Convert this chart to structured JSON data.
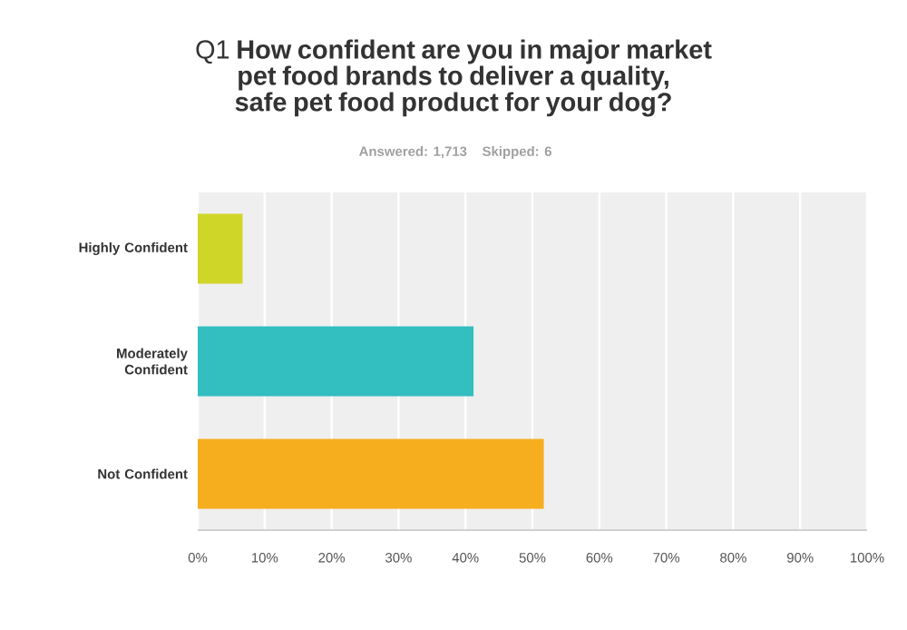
{
  "chart_data": {
    "type": "bar",
    "orientation": "horizontal",
    "title": "Q1 **How confident are you in major market pet food brands to deliver a quality, safe pet food product for your dog?**",
    "subtitle": "Answered: 1,713    Skipped: 6",
    "categories": [
      "Highly Confident",
      "Moderately Confident",
      "Not Confident"
    ],
    "values": [
      6.7,
      41.2,
      51.7
    ],
    "colors": [
      "#d0d628",
      "#33bec0",
      "#f6ae1f"
    ],
    "xlim": [
      0,
      100
    ],
    "xticks": [
      {
        "value": 0,
        "label": "0%"
      },
      {
        "value": 10,
        "label": "10%"
      },
      {
        "value": 20,
        "label": "20%"
      },
      {
        "value": 30,
        "label": "30%"
      },
      {
        "value": 40,
        "label": "40%"
      },
      {
        "value": 50,
        "label": "50%"
      },
      {
        "value": 60,
        "label": "60%"
      },
      {
        "value": 70,
        "label": "70%"
      },
      {
        "value": 80,
        "label": "80%"
      },
      {
        "value": 90,
        "label": "90%"
      },
      {
        "value": 100,
        "label": "100%"
      }
    ],
    "grid": "x"
  }
}
